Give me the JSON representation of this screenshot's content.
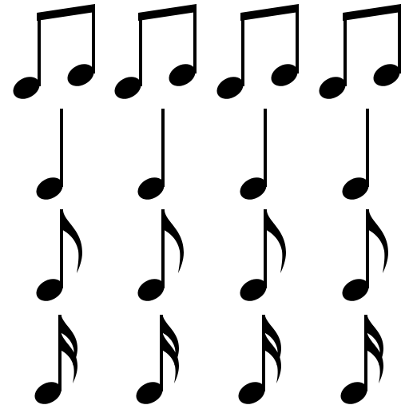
{
  "colors": {
    "background": "#ffffff",
    "ink": "#000000"
  },
  "rows": [
    {
      "note": "beamed-eighth-notes",
      "count": 4
    },
    {
      "note": "quarter-note",
      "count": 4
    },
    {
      "note": "eighth-note",
      "count": 4
    },
    {
      "note": "sixteenth-note",
      "count": 4
    }
  ]
}
